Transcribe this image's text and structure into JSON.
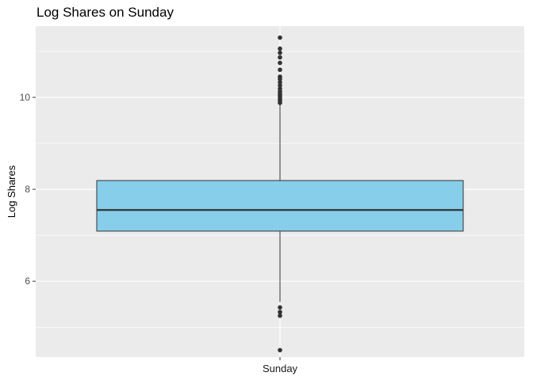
{
  "chart_data": {
    "type": "boxplot",
    "title": "Log Shares on Sunday",
    "xlabel": "",
    "ylabel": "Log Shares",
    "categories": [
      "Sunday"
    ],
    "ylim": [
      4.35,
      11.55
    ],
    "yticks": [
      6,
      8,
      10
    ],
    "grid": true,
    "legend": "none",
    "series": [
      {
        "category": "Sunday",
        "q1": 7.09,
        "median": 7.55,
        "q3": 8.19,
        "whisker_low": 5.55,
        "whisker_high": 9.85,
        "outliers": [
          4.5,
          5.25,
          5.33,
          5.43,
          9.88,
          9.92,
          9.96,
          10.0,
          10.04,
          10.08,
          10.13,
          10.19,
          10.26,
          10.33,
          10.4,
          10.45,
          10.6,
          10.75,
          10.87,
          10.97,
          11.06,
          11.3
        ]
      }
    ],
    "colors": {
      "panel": "#ebebeb",
      "grid": "#ffffff",
      "box_fill": "#87ceeb",
      "box_stroke": "#333333",
      "point": "#333333"
    }
  }
}
